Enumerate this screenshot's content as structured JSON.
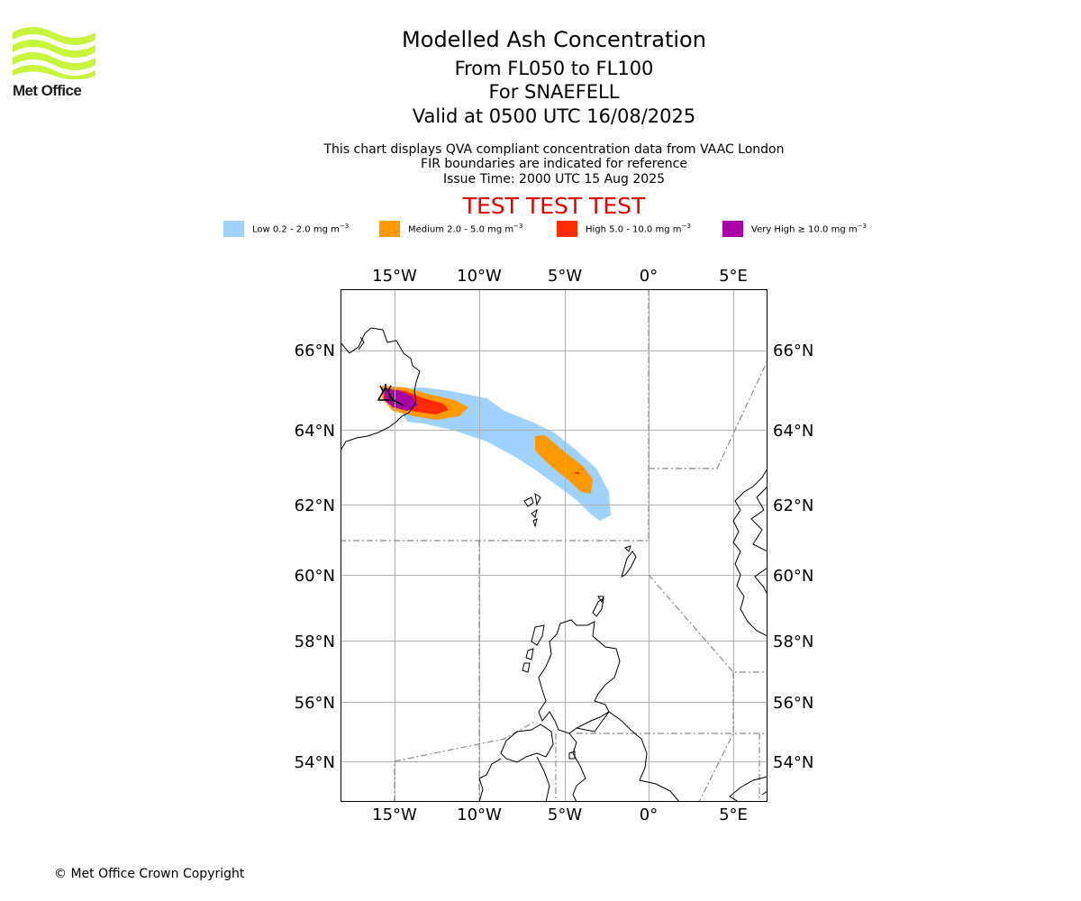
{
  "header": {
    "logo_text": "Met Office",
    "title": "Modelled Ash Concentration",
    "levels": "From FL050 to FL100",
    "volcano": "For SNAEFELL",
    "valid": "Valid at 0500 UTC 16/08/2025",
    "sub1": "This chart displays QVA compliant concentration data from VAAC London",
    "sub2": "FIR boundaries are indicated for reference",
    "issue": "Issue Time: 2000 UTC 15 Aug 2025",
    "test_banner": "TEST TEST TEST"
  },
  "legend": [
    {
      "label": "Low 0.2 - 2.0 mg m",
      "unit_exp": "−3",
      "color": "#a0d2ff"
    },
    {
      "label": "Medium 2.0 - 5.0 mg m",
      "unit_exp": "−3",
      "color": "#ff9900"
    },
    {
      "label": "High 5.0 - 10.0 mg m",
      "unit_exp": "−3",
      "color": "#ff2a00"
    },
    {
      "label": "Very High  ≥  10.0 mg m",
      "unit_exp": "−3",
      "color": "#aa00aa"
    }
  ],
  "map": {
    "lon_range": [
      -18.2,
      7.0
    ],
    "lat_range": [
      52.8,
      67.5
    ],
    "lon_ticks": [
      {
        "v": -15,
        "label": "15°W"
      },
      {
        "v": -10,
        "label": "10°W"
      },
      {
        "v": -5,
        "label": "5°W"
      },
      {
        "v": 0,
        "label": "0°"
      },
      {
        "v": 5,
        "label": "5°E"
      }
    ],
    "lat_ticks": [
      {
        "v": 66,
        "label": "66°N"
      },
      {
        "v": 64,
        "label": "64°N"
      },
      {
        "v": 62,
        "label": "62°N"
      },
      {
        "v": 60,
        "label": "60°N"
      },
      {
        "v": 58,
        "label": "58°N"
      },
      {
        "v": 56,
        "label": "56°N"
      },
      {
        "v": 54,
        "label": "54°N"
      }
    ],
    "volcano_marker": {
      "lon": -15.2,
      "lat": 64.8
    }
  },
  "footer": {
    "copyright": "© Met Office Crown Copyright"
  }
}
